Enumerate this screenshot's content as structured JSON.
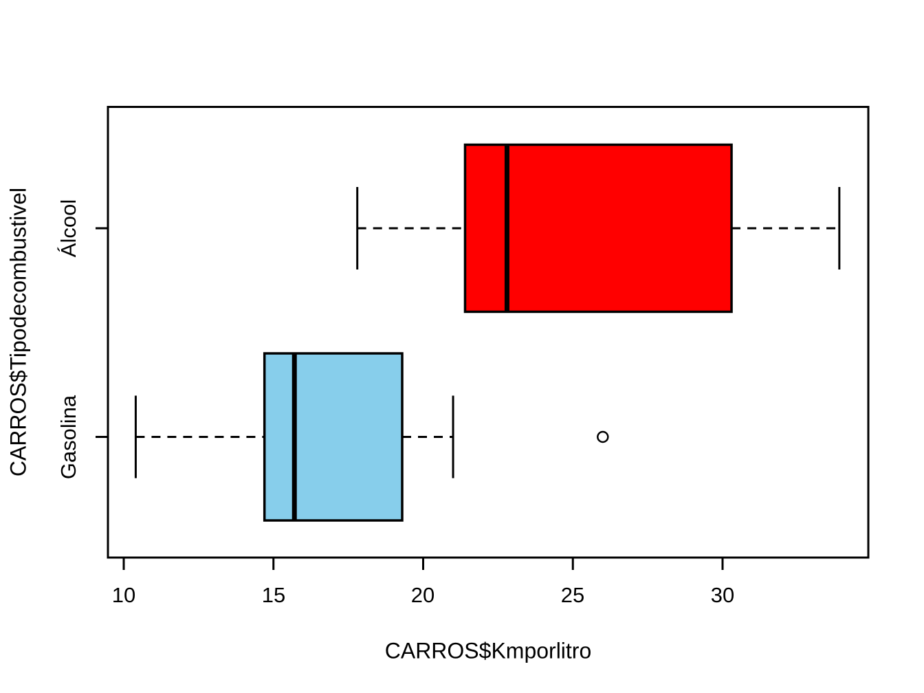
{
  "chart_data": {
    "type": "boxplot",
    "orientation": "horizontal",
    "title": "",
    "xlabel": "CARROS$Kmporlitro",
    "ylabel": "CARROS$Tipodecombustivel",
    "x_ticks": [
      10,
      15,
      20,
      25,
      30
    ],
    "xlim": [
      9.5,
      34.9
    ],
    "grid": false,
    "legend": "none",
    "colors": {
      "box_border": "#000000",
      "median_line": "#000000",
      "whisker": "#000000",
      "background": "#FFFFFF",
      "gasolina_fill": "#87CEEB",
      "alcool_fill": "#FF0000"
    },
    "groups": [
      {
        "label": "Gasolina",
        "fill": "#87CEEB",
        "stats": {
          "whisker_low": 10.4,
          "q1": 14.7,
          "median": 15.7,
          "q3": 19.3,
          "whisker_high": 21.0
        },
        "outliers": [
          26
        ]
      },
      {
        "label": "Álcool",
        "fill": "#FF0000",
        "stats": {
          "whisker_low": 17.8,
          "q1": 21.4,
          "median": 22.8,
          "q3": 30.3,
          "whisker_high": 33.9
        },
        "outliers": []
      }
    ]
  }
}
